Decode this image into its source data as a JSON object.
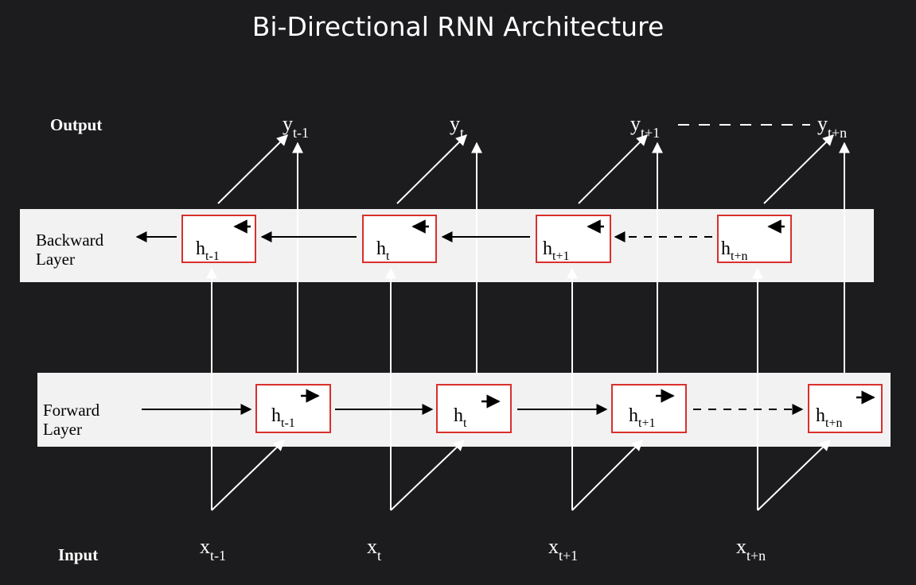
{
  "title": "Bi-Directional RNN Architecture",
  "labels": {
    "output": "Output",
    "input": "Input",
    "backward_line1": "Backward",
    "backward_line2": "Layer",
    "forward_line1": "Forward",
    "forward_line2": "Layer"
  },
  "timesteps": [
    {
      "main": "h",
      "sub": "t-1"
    },
    {
      "main": "h",
      "sub": "t"
    },
    {
      "main": "h",
      "sub": "t+1"
    },
    {
      "main": "h",
      "sub": "t+n"
    }
  ],
  "outputs": [
    {
      "main": "y",
      "sub": "t-1"
    },
    {
      "main": "y",
      "sub": "t"
    },
    {
      "main": "y",
      "sub": "t+1"
    },
    {
      "main": "y",
      "sub": "t+n"
    }
  ],
  "inputs": [
    {
      "main": "x",
      "sub": "t-1"
    },
    {
      "main": "x",
      "sub": "t"
    },
    {
      "main": "x",
      "sub": "t+1"
    },
    {
      "main": "x",
      "sub": "t+n"
    }
  ],
  "colors": {
    "background": "#1c1c1e",
    "layer_band": "#f2f2f2",
    "node_border": "#d9302c",
    "lines": "#ffffff",
    "text": "#ffffff",
    "dark_text": "#000000"
  }
}
